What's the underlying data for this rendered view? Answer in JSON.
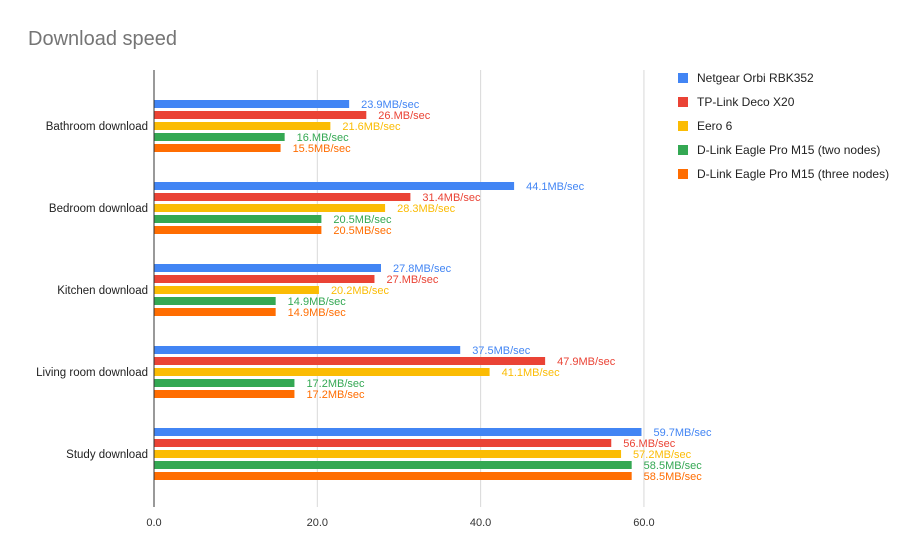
{
  "colors": {
    "series": [
      "#4285f4",
      "#ea4335",
      "#fbbc04",
      "#34a853",
      "#ff6d01"
    ],
    "grid": "#d9d9d9",
    "axis": "#333333",
    "title": "#757575"
  },
  "chart_data": {
    "type": "bar",
    "orientation": "horizontal",
    "title": "Download speed",
    "xlabel": "",
    "ylabel": "",
    "xlim": [
      0,
      66.5
    ],
    "ticks": [
      "0.0",
      "20.0",
      "40.0",
      "60.0"
    ],
    "tick_values": [
      0,
      20,
      40,
      60
    ],
    "grid": true,
    "legend_position": "right",
    "categories": [
      "Bathroom download",
      "Bedroom download",
      "Kitchen download",
      "Living room download",
      "Study download"
    ],
    "series": [
      {
        "name": "Netgear Orbi RBK352",
        "values": [
          23.9,
          44.1,
          27.8,
          37.5,
          59.7
        ],
        "labels": [
          "23.9MB/sec",
          "44.1MB/sec",
          "27.8MB/sec",
          "37.5MB/sec",
          "59.7MB/sec"
        ]
      },
      {
        "name": "TP-Link Deco X20",
        "values": [
          26,
          31.4,
          27,
          47.9,
          56
        ],
        "labels": [
          "26.MB/sec",
          "31.4MB/sec",
          "27.MB/sec",
          "47.9MB/sec",
          "56.MB/sec"
        ]
      },
      {
        "name": "Eero 6",
        "values": [
          21.6,
          28.3,
          20.2,
          41.1,
          57.2
        ],
        "labels": [
          "21.6MB/sec",
          "28.3MB/sec",
          "20.2MB/sec",
          "41.1MB/sec",
          "57.2MB/sec"
        ]
      },
      {
        "name": "D-Link Eagle Pro M15 (two nodes)",
        "values": [
          16,
          20.5,
          14.9,
          17.2,
          58.5
        ],
        "labels": [
          "16.MB/sec",
          "20.5MB/sec",
          "14.9MB/sec",
          "17.2MB/sec",
          "58.5MB/sec"
        ]
      },
      {
        "name": "D-Link Eagle Pro M15 (three nodes)",
        "values": [
          15.5,
          20.5,
          14.9,
          17.2,
          58.5
        ],
        "labels": [
          "15.5MB/sec",
          "20.5MB/sec",
          "14.9MB/sec",
          "17.2MB/sec",
          "58.5MB/sec"
        ]
      }
    ]
  }
}
